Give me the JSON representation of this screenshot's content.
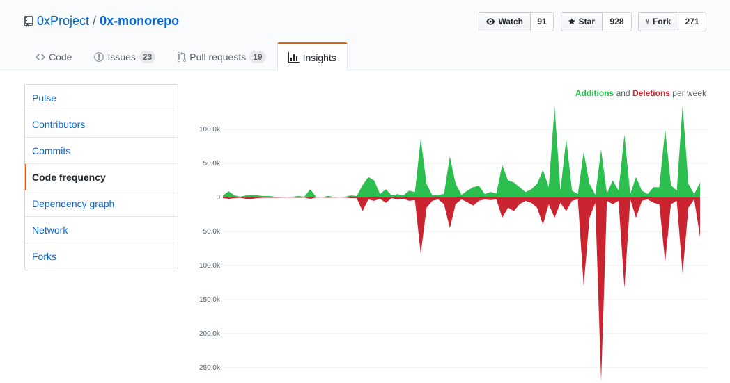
{
  "repo": {
    "owner": "0xProject",
    "separator": "/",
    "name": "0x-monorepo"
  },
  "actions": [
    {
      "label": "Watch",
      "count": "91",
      "icon": "eye-icon"
    },
    {
      "label": "Star",
      "count": "928",
      "icon": "star-icon"
    },
    {
      "label": "Fork",
      "count": "271",
      "icon": "repo-forked-icon"
    }
  ],
  "tabs": [
    {
      "label": "Code",
      "counter": "",
      "icon": "code-icon"
    },
    {
      "label": "Issues",
      "counter": "23",
      "icon": "issue-opened-icon"
    },
    {
      "label": "Pull requests",
      "counter": "19",
      "icon": "git-pull-request-icon"
    },
    {
      "label": "Insights",
      "counter": "",
      "icon": "graph-icon",
      "selected": true
    }
  ],
  "menu": [
    {
      "label": "Pulse"
    },
    {
      "label": "Contributors"
    },
    {
      "label": "Commits"
    },
    {
      "label": "Code frequency",
      "selected": true
    },
    {
      "label": "Dependency graph"
    },
    {
      "label": "Network"
    },
    {
      "label": "Forks"
    }
  ],
  "legend": {
    "additions": "Additions",
    "and": "and",
    "deletions": "Deletions",
    "suffix": "per week"
  },
  "chart_data": {
    "type": "area",
    "ylim": [
      -270000,
      135000
    ],
    "y_ticks": [
      {
        "value": 100000,
        "label": "100.0k"
      },
      {
        "value": 50000,
        "label": "50.0k"
      },
      {
        "value": 0,
        "label": "0"
      },
      {
        "value": -50000,
        "label": "50.0k"
      },
      {
        "value": -100000,
        "label": "100.0k"
      },
      {
        "value": -150000,
        "label": "150.0k"
      },
      {
        "value": -200000,
        "label": "200.0k"
      },
      {
        "value": -250000,
        "label": "250.0k"
      }
    ],
    "series": [
      {
        "name": "Additions",
        "color": "#2cbe4e",
        "values": [
          3000,
          9000,
          3000,
          1000,
          3000,
          4000,
          3000,
          2000,
          2000,
          1000,
          1000,
          500,
          1000,
          2000,
          1000,
          12000,
          1000,
          500,
          2000,
          1000,
          500,
          1000,
          3000,
          2000,
          18000,
          30000,
          25000,
          5000,
          12000,
          3000,
          5000,
          3000,
          10000,
          8000,
          86000,
          20000,
          3000,
          4000,
          5000,
          60000,
          20000,
          4000,
          10000,
          15000,
          17000,
          5000,
          8000,
          6000,
          48000,
          25000,
          22000,
          15000,
          8000,
          12000,
          20000,
          40000,
          15000,
          133000,
          10000,
          86000,
          10000,
          5000,
          67000,
          20000,
          4000,
          70000,
          6000,
          25000,
          10000,
          92000,
          5000,
          30000,
          10000,
          5000,
          15000,
          15000,
          100000,
          18000,
          10000,
          135000,
          20000,
          5000,
          22000
        ]
      },
      {
        "name": "Deletions",
        "color": "#cb2431",
        "values": [
          -1000,
          -2000,
          -1000,
          -500,
          -2000,
          -2000,
          -1000,
          -500,
          -500,
          -500,
          -300,
          -200,
          -300,
          -500,
          -300,
          -2000,
          -200,
          -100,
          -500,
          -300,
          -100,
          -300,
          -1000,
          -1000,
          -20000,
          -3000,
          -5000,
          -2000,
          -8000,
          -1000,
          -3000,
          -2000,
          -5000,
          -4000,
          -83000,
          -15000,
          -5000,
          -3000,
          -10000,
          -45000,
          -10000,
          -3000,
          -7000,
          -12000,
          -5000,
          -3000,
          -4000,
          -3000,
          -30000,
          -15000,
          -20000,
          -10000,
          -5000,
          -8000,
          -15000,
          -40000,
          -10000,
          -30000,
          -8000,
          -20000,
          -5000,
          -3000,
          -130000,
          -30000,
          -8000,
          -270000,
          -5000,
          -10000,
          -5000,
          -133000,
          -3000,
          -30000,
          -5000,
          -3000,
          -8000,
          -10000,
          -95000,
          -10000,
          -5000,
          -112000,
          -15000,
          -3000,
          -58000
        ]
      }
    ]
  }
}
